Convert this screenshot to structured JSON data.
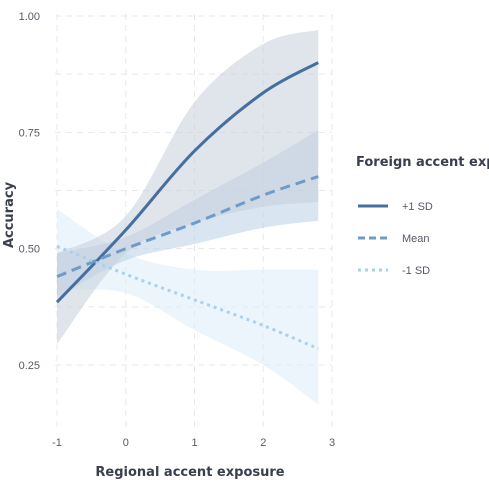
{
  "chart_data": {
    "type": "line",
    "title": "",
    "xlabel": "Regional accent exposure",
    "ylabel": "Accuracy",
    "xlim": [
      -1,
      3
    ],
    "ylim": [
      0.25,
      1.0
    ],
    "x_ticks": [
      "-1",
      "0",
      "1",
      "2",
      "3"
    ],
    "y_ticks": [
      "0.25",
      "0.50",
      "0.75",
      "1.00"
    ],
    "grid": true,
    "legend": {
      "title": "Foreign accent exposure",
      "position": "right"
    },
    "series": [
      {
        "name": "+1 SD",
        "line_style": "solid",
        "color": "#466fa0",
        "band_color": "#c7cfdd",
        "x": [
          -1,
          0,
          1,
          2,
          2.8
        ],
        "y": [
          0.385,
          0.54,
          0.71,
          0.835,
          0.9
        ],
        "lower": [
          0.295,
          0.49,
          0.555,
          0.59,
          0.6
        ],
        "upper": [
          0.49,
          0.57,
          0.815,
          0.94,
          0.97
        ]
      },
      {
        "name": "Mean",
        "line_style": "dashed",
        "color": "#6f9cc7",
        "band_color": "#b9d0e6",
        "x": [
          -1,
          0,
          1,
          2,
          2.8
        ],
        "y": [
          0.44,
          0.5,
          0.555,
          0.615,
          0.655
        ],
        "lower": [
          0.395,
          0.475,
          0.51,
          0.545,
          0.56
        ],
        "upper": [
          0.49,
          0.525,
          0.605,
          0.685,
          0.755
        ]
      },
      {
        "name": "-1 SD",
        "line_style": "dotted",
        "color": "#a8d2ea",
        "band_color": "#dcedf8",
        "x": [
          -1,
          0,
          1,
          2,
          2.8
        ],
        "y": [
          0.505,
          0.445,
          0.39,
          0.335,
          0.285
        ],
        "lower": [
          0.41,
          0.405,
          0.325,
          0.25,
          0.165
        ],
        "upper": [
          0.585,
          0.49,
          0.455,
          0.455,
          0.455
        ]
      }
    ]
  }
}
